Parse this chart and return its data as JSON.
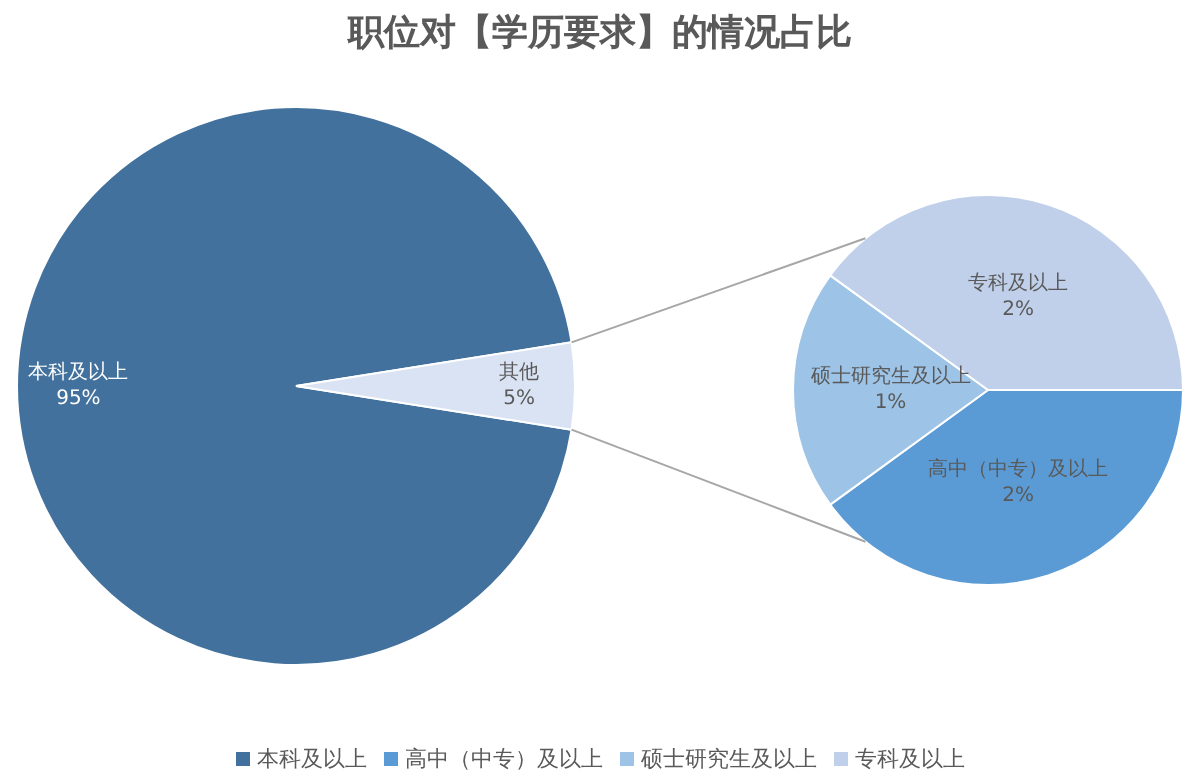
{
  "chart_data": [
    {
      "type": "pie",
      "title": "职位对【学历要求】的情况占比",
      "categories": [
        "本科及以上",
        "其他"
      ],
      "values": [
        95,
        5
      ],
      "value_labels": [
        "95%",
        "5%"
      ],
      "colors": [
        "#41719c",
        "#dae3f3"
      ],
      "legend": "bottom"
    },
    {
      "type": "pie",
      "categories": [
        "高中（中专）及以上",
        "硕士研究生及以上",
        "专科及以上"
      ],
      "values": [
        2,
        1,
        2
      ],
      "value_labels": [
        "2%",
        "1%",
        "2%"
      ],
      "colors": [
        "#5b9bd5",
        "#9dc3e6",
        "#c0d0ea"
      ],
      "legend": "bottom"
    }
  ]
}
